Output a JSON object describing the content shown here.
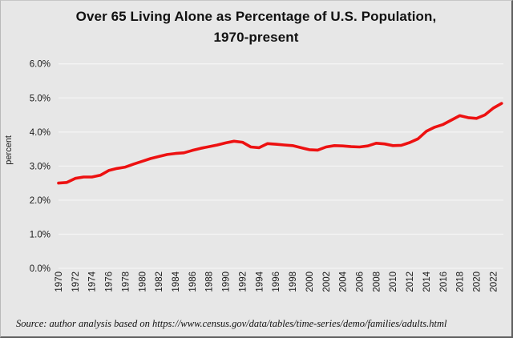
{
  "header": {
    "title_line1": "Over 65 Living Alone as Percentage of U.S. Population,",
    "title_line2": "1970-present"
  },
  "footer": {
    "source": "Source: author analysis based on https://www.census.gov/data/tables/time-series/demo/families/adults.html"
  },
  "chart_data": {
    "type": "line",
    "title": "Over 65 Living Alone as Percentage of U.S. Population, 1970-present",
    "xlabel": "",
    "ylabel": "percent",
    "ylim": [
      0,
      6.0
    ],
    "y_tick_labels": [
      "0.0%",
      "1.0%",
      "2.0%",
      "3.0%",
      "4.0%",
      "5.0%",
      "6.0%"
    ],
    "x_tick_years": [
      1970,
      1972,
      1974,
      1976,
      1978,
      1980,
      1982,
      1984,
      1986,
      1988,
      1990,
      1992,
      1994,
      1996,
      1998,
      2000,
      2002,
      2004,
      2006,
      2008,
      2010,
      2012,
      2014,
      2016,
      2018,
      2020,
      2022
    ],
    "grid": true,
    "legend": false,
    "background_color": "#e7e7e7",
    "gridline_color": "#f4f4f4",
    "line_color": "#ed1111",
    "series": [
      {
        "name": "over-65-living-alone-percent",
        "x": [
          1970,
          1971,
          1972,
          1973,
          1974,
          1975,
          1976,
          1977,
          1978,
          1979,
          1980,
          1981,
          1982,
          1983,
          1984,
          1985,
          1986,
          1987,
          1988,
          1989,
          1990,
          1991,
          1992,
          1993,
          1994,
          1995,
          1996,
          1997,
          1998,
          1999,
          2000,
          2001,
          2002,
          2003,
          2004,
          2005,
          2006,
          2007,
          2008,
          2009,
          2010,
          2011,
          2012,
          2013,
          2014,
          2015,
          2016,
          2017,
          2018,
          2019,
          2020,
          2021,
          2022,
          2023
        ],
        "values": [
          2.5,
          2.52,
          2.64,
          2.68,
          2.68,
          2.73,
          2.87,
          2.93,
          2.97,
          3.06,
          3.14,
          3.22,
          3.28,
          3.34,
          3.37,
          3.39,
          3.46,
          3.52,
          3.57,
          3.62,
          3.68,
          3.73,
          3.7,
          3.56,
          3.54,
          3.66,
          3.64,
          3.62,
          3.6,
          3.54,
          3.48,
          3.47,
          3.56,
          3.6,
          3.59,
          3.57,
          3.56,
          3.59,
          3.67,
          3.65,
          3.6,
          3.61,
          3.69,
          3.8,
          4.02,
          4.14,
          4.22,
          4.35,
          4.48,
          4.42,
          4.4,
          4.5,
          4.7,
          4.84
        ]
      }
    ]
  }
}
